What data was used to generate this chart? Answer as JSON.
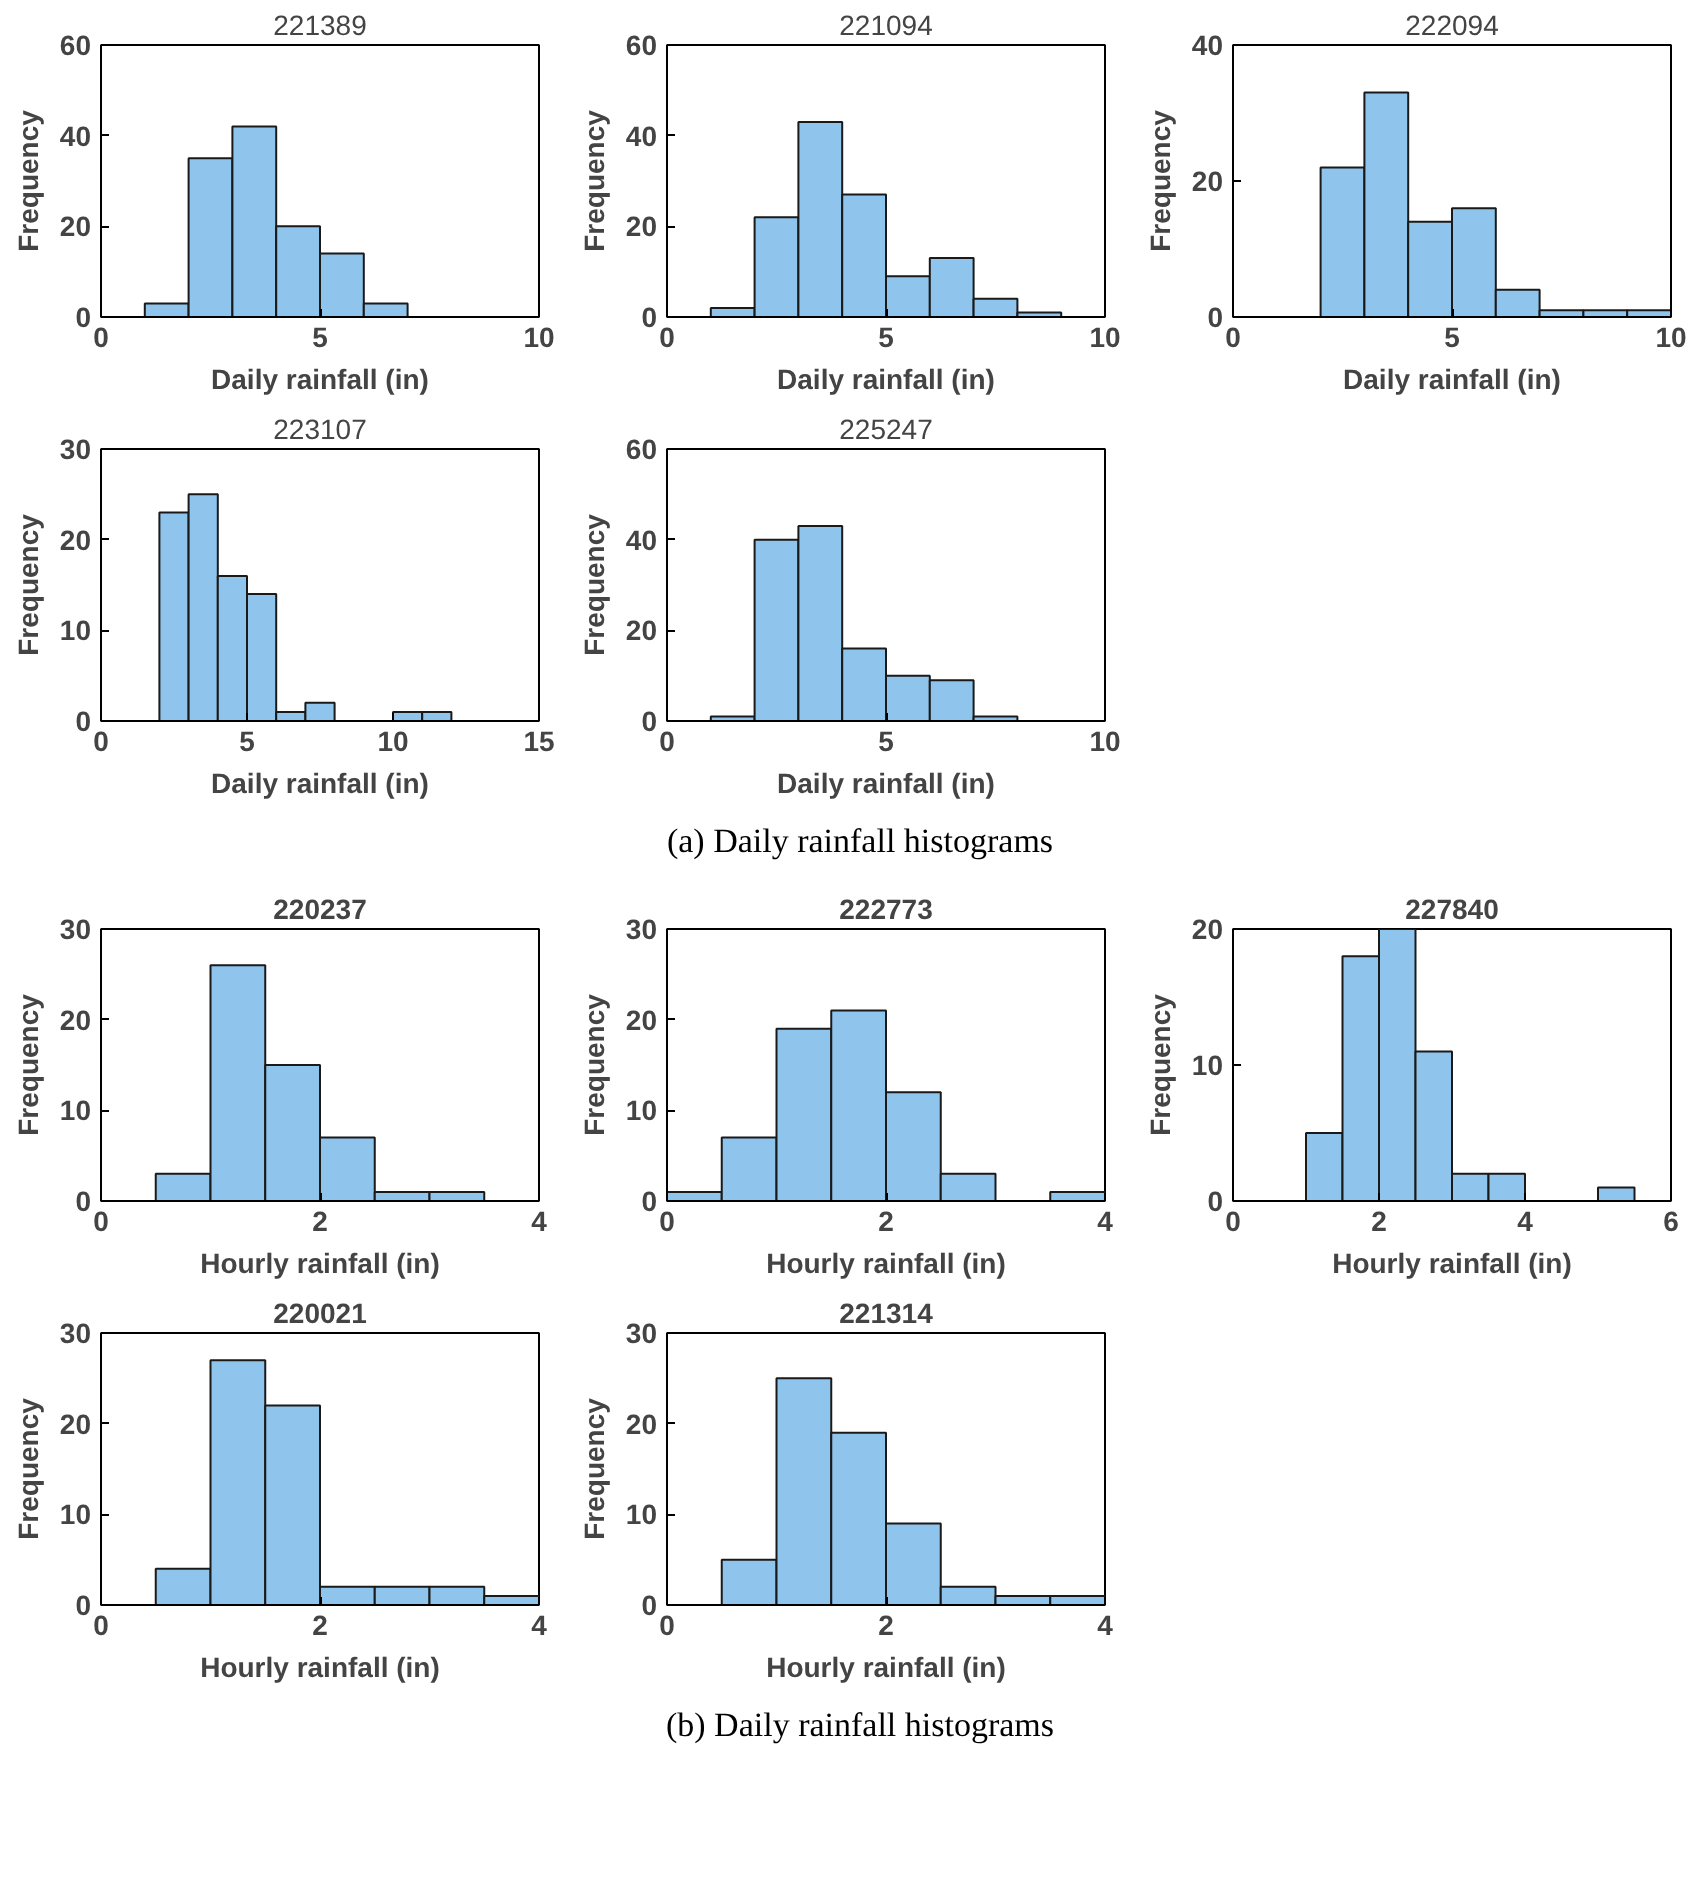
{
  "chart_data": [
    {
      "type": "histogram",
      "title": "221389",
      "xlabel": "Daily rainfall (in)",
      "ylabel": "Frequency",
      "bins": [
        1,
        2,
        3,
        4,
        5,
        6,
        7
      ],
      "values": [
        3,
        35,
        42,
        20,
        14,
        3
      ],
      "color": "#8fc4ec",
      "xlim": [
        0,
        10
      ],
      "xticks": [
        0,
        5,
        10
      ],
      "ylim": [
        0,
        60
      ],
      "yticks": [
        0,
        20,
        40,
        60
      ],
      "grid": false
    },
    {
      "type": "histogram",
      "title": "221094",
      "xlabel": "Daily rainfall (in)",
      "ylabel": "Frequency",
      "bins": [
        1,
        2,
        3,
        4,
        5,
        6,
        7,
        8,
        9
      ],
      "values": [
        2,
        22,
        43,
        27,
        9,
        13,
        4,
        1
      ],
      "color": "#8fc4ec",
      "xlim": [
        0,
        10
      ],
      "xticks": [
        0,
        5,
        10
      ],
      "ylim": [
        0,
        60
      ],
      "yticks": [
        0,
        20,
        40,
        60
      ],
      "grid": false
    },
    {
      "type": "histogram",
      "title": "222094",
      "xlabel": "Daily rainfall (in)",
      "ylabel": "Frequency",
      "bins": [
        2,
        3,
        4,
        5,
        6,
        7,
        8,
        9,
        10
      ],
      "values": [
        22,
        33,
        14,
        16,
        4,
        1,
        1,
        1
      ],
      "color": "#8fc4ec",
      "xlim": [
        0,
        10
      ],
      "xticks": [
        0,
        5,
        10
      ],
      "ylim": [
        0,
        40
      ],
      "yticks": [
        0,
        20,
        40
      ],
      "grid": false
    },
    {
      "type": "histogram",
      "title": "223107",
      "xlabel": "Daily rainfall (in)",
      "ylabel": "Frequency",
      "bins": [
        2,
        3,
        4,
        5,
        6,
        7,
        8,
        9,
        10,
        11,
        12
      ],
      "values": [
        23,
        25,
        16,
        14,
        1,
        2,
        0,
        0,
        1,
        1
      ],
      "color": "#8fc4ec",
      "xlim": [
        0,
        15
      ],
      "xticks": [
        0,
        5,
        10,
        15
      ],
      "ylim": [
        0,
        30
      ],
      "yticks": [
        0,
        10,
        20,
        30
      ],
      "grid": false
    },
    {
      "type": "histogram",
      "title": "225247",
      "xlabel": "Daily rainfall (in)",
      "ylabel": "Frequency",
      "bins": [
        1,
        2,
        3,
        4,
        5,
        6,
        7,
        8
      ],
      "values": [
        1,
        40,
        43,
        16,
        10,
        9,
        1
      ],
      "color": "#8fc4ec",
      "xlim": [
        0,
        10
      ],
      "xticks": [
        0,
        5,
        10
      ],
      "ylim": [
        0,
        60
      ],
      "yticks": [
        0,
        20,
        40,
        60
      ],
      "grid": false,
      "annotations": [
        "(a) Daily rainfall histograms"
      ]
    },
    {
      "type": "histogram",
      "title": "220237",
      "xlabel": "Hourly rainfall (in)",
      "ylabel": "Frequency",
      "bins": [
        0.5,
        1,
        1.5,
        2,
        2.5,
        3,
        3.5
      ],
      "values": [
        3,
        26,
        15,
        7,
        1,
        1
      ],
      "color": "#8fc4ec",
      "xlim": [
        0,
        4
      ],
      "xticks": [
        0,
        2,
        4
      ],
      "ylim": [
        0,
        30
      ],
      "yticks": [
        0,
        10,
        20,
        30
      ],
      "grid": false
    },
    {
      "type": "histogram",
      "title": "222773",
      "xlabel": "Hourly rainfall (in)",
      "ylabel": "Frequency",
      "bins": [
        0,
        0.5,
        1,
        1.5,
        2,
        2.5,
        3,
        3.5,
        4
      ],
      "values": [
        1,
        7,
        19,
        21,
        12,
        3,
        0,
        1
      ],
      "color": "#8fc4ec",
      "xlim": [
        0,
        4
      ],
      "xticks": [
        0,
        2,
        4
      ],
      "ylim": [
        0,
        30
      ],
      "yticks": [
        0,
        10,
        20,
        30
      ],
      "grid": false
    },
    {
      "type": "histogram",
      "title": "227840",
      "xlabel": "Hourly rainfall (in)",
      "ylabel": "Frequency",
      "bins": [
        1,
        1.5,
        2,
        2.5,
        3,
        3.5,
        4,
        4.5,
        5,
        5.5
      ],
      "values": [
        5,
        18,
        20,
        11,
        2,
        2,
        0,
        0,
        1
      ],
      "color": "#8fc4ec",
      "xlim": [
        0,
        6
      ],
      "xticks": [
        0,
        2,
        4,
        6
      ],
      "ylim": [
        0,
        20
      ],
      "yticks": [
        0,
        10,
        20
      ],
      "grid": false
    },
    {
      "type": "histogram",
      "title": "220021",
      "xlabel": "Hourly rainfall (in)",
      "ylabel": "Frequency",
      "bins": [
        0.5,
        1,
        1.5,
        2,
        2.5,
        3,
        3.5,
        4
      ],
      "values": [
        4,
        27,
        22,
        2,
        2,
        2,
        1
      ],
      "color": "#8fc4ec",
      "xlim": [
        0,
        4
      ],
      "xticks": [
        0,
        2,
        4
      ],
      "ylim": [
        0,
        30
      ],
      "yticks": [
        0,
        10,
        20,
        30
      ],
      "grid": false
    },
    {
      "type": "histogram",
      "title": "221314",
      "xlabel": "Hourly rainfall (in)",
      "ylabel": "Frequency",
      "bins": [
        0.5,
        1,
        1.5,
        2,
        2.5,
        3,
        3.5,
        4
      ],
      "values": [
        5,
        25,
        19,
        9,
        2,
        1,
        1
      ],
      "color": "#8fc4ec",
      "xlim": [
        0,
        4
      ],
      "xticks": [
        0,
        2,
        4
      ],
      "ylim": [
        0,
        30
      ],
      "yticks": [
        0,
        10,
        20,
        30
      ],
      "grid": false,
      "annotations": [
        "(b) Daily rainfall histograms"
      ]
    }
  ]
}
